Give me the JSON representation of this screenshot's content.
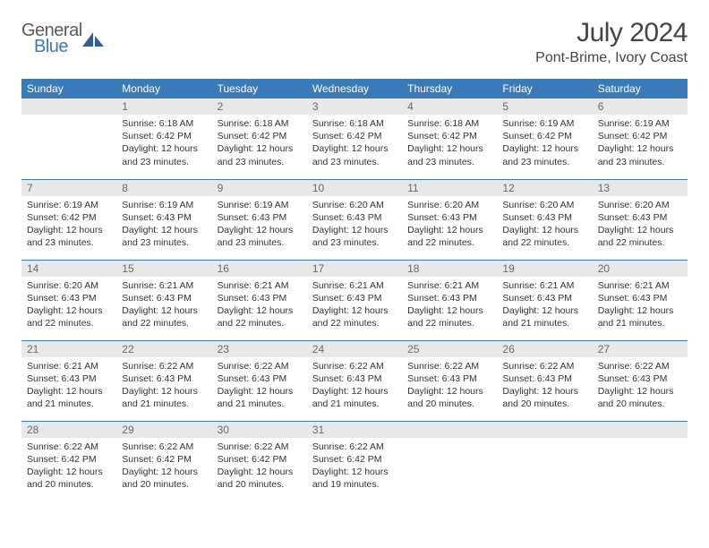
{
  "logo": {
    "general": "General",
    "blue": "Blue"
  },
  "title": {
    "month": "July 2024",
    "location": "Pont-Brime, Ivory Coast"
  },
  "colors": {
    "header_bg": "#3a7ab8",
    "header_fg": "#ffffff",
    "daynum_bg": "#e8e8e8",
    "daynum_fg": "#6a6a6a",
    "rule": "#3a7ab8",
    "text": "#333333",
    "logo_gray": "#5a5a5a",
    "logo_blue": "#3a7ab8"
  },
  "weekdays": [
    "Sunday",
    "Monday",
    "Tuesday",
    "Wednesday",
    "Thursday",
    "Friday",
    "Saturday"
  ],
  "startOffset": 1,
  "daysInMonth": 31,
  "days": {
    "1": {
      "sunrise": "Sunrise: 6:18 AM",
      "sunset": "Sunset: 6:42 PM",
      "daylight": "Daylight: 12 hours and 23 minutes."
    },
    "2": {
      "sunrise": "Sunrise: 6:18 AM",
      "sunset": "Sunset: 6:42 PM",
      "daylight": "Daylight: 12 hours and 23 minutes."
    },
    "3": {
      "sunrise": "Sunrise: 6:18 AM",
      "sunset": "Sunset: 6:42 PM",
      "daylight": "Daylight: 12 hours and 23 minutes."
    },
    "4": {
      "sunrise": "Sunrise: 6:18 AM",
      "sunset": "Sunset: 6:42 PM",
      "daylight": "Daylight: 12 hours and 23 minutes."
    },
    "5": {
      "sunrise": "Sunrise: 6:19 AM",
      "sunset": "Sunset: 6:42 PM",
      "daylight": "Daylight: 12 hours and 23 minutes."
    },
    "6": {
      "sunrise": "Sunrise: 6:19 AM",
      "sunset": "Sunset: 6:42 PM",
      "daylight": "Daylight: 12 hours and 23 minutes."
    },
    "7": {
      "sunrise": "Sunrise: 6:19 AM",
      "sunset": "Sunset: 6:42 PM",
      "daylight": "Daylight: 12 hours and 23 minutes."
    },
    "8": {
      "sunrise": "Sunrise: 6:19 AM",
      "sunset": "Sunset: 6:43 PM",
      "daylight": "Daylight: 12 hours and 23 minutes."
    },
    "9": {
      "sunrise": "Sunrise: 6:19 AM",
      "sunset": "Sunset: 6:43 PM",
      "daylight": "Daylight: 12 hours and 23 minutes."
    },
    "10": {
      "sunrise": "Sunrise: 6:20 AM",
      "sunset": "Sunset: 6:43 PM",
      "daylight": "Daylight: 12 hours and 23 minutes."
    },
    "11": {
      "sunrise": "Sunrise: 6:20 AM",
      "sunset": "Sunset: 6:43 PM",
      "daylight": "Daylight: 12 hours and 22 minutes."
    },
    "12": {
      "sunrise": "Sunrise: 6:20 AM",
      "sunset": "Sunset: 6:43 PM",
      "daylight": "Daylight: 12 hours and 22 minutes."
    },
    "13": {
      "sunrise": "Sunrise: 6:20 AM",
      "sunset": "Sunset: 6:43 PM",
      "daylight": "Daylight: 12 hours and 22 minutes."
    },
    "14": {
      "sunrise": "Sunrise: 6:20 AM",
      "sunset": "Sunset: 6:43 PM",
      "daylight": "Daylight: 12 hours and 22 minutes."
    },
    "15": {
      "sunrise": "Sunrise: 6:21 AM",
      "sunset": "Sunset: 6:43 PM",
      "daylight": "Daylight: 12 hours and 22 minutes."
    },
    "16": {
      "sunrise": "Sunrise: 6:21 AM",
      "sunset": "Sunset: 6:43 PM",
      "daylight": "Daylight: 12 hours and 22 minutes."
    },
    "17": {
      "sunrise": "Sunrise: 6:21 AM",
      "sunset": "Sunset: 6:43 PM",
      "daylight": "Daylight: 12 hours and 22 minutes."
    },
    "18": {
      "sunrise": "Sunrise: 6:21 AM",
      "sunset": "Sunset: 6:43 PM",
      "daylight": "Daylight: 12 hours and 22 minutes."
    },
    "19": {
      "sunrise": "Sunrise: 6:21 AM",
      "sunset": "Sunset: 6:43 PM",
      "daylight": "Daylight: 12 hours and 21 minutes."
    },
    "20": {
      "sunrise": "Sunrise: 6:21 AM",
      "sunset": "Sunset: 6:43 PM",
      "daylight": "Daylight: 12 hours and 21 minutes."
    },
    "21": {
      "sunrise": "Sunrise: 6:21 AM",
      "sunset": "Sunset: 6:43 PM",
      "daylight": "Daylight: 12 hours and 21 minutes."
    },
    "22": {
      "sunrise": "Sunrise: 6:22 AM",
      "sunset": "Sunset: 6:43 PM",
      "daylight": "Daylight: 12 hours and 21 minutes."
    },
    "23": {
      "sunrise": "Sunrise: 6:22 AM",
      "sunset": "Sunset: 6:43 PM",
      "daylight": "Daylight: 12 hours and 21 minutes."
    },
    "24": {
      "sunrise": "Sunrise: 6:22 AM",
      "sunset": "Sunset: 6:43 PM",
      "daylight": "Daylight: 12 hours and 21 minutes."
    },
    "25": {
      "sunrise": "Sunrise: 6:22 AM",
      "sunset": "Sunset: 6:43 PM",
      "daylight": "Daylight: 12 hours and 20 minutes."
    },
    "26": {
      "sunrise": "Sunrise: 6:22 AM",
      "sunset": "Sunset: 6:43 PM",
      "daylight": "Daylight: 12 hours and 20 minutes."
    },
    "27": {
      "sunrise": "Sunrise: 6:22 AM",
      "sunset": "Sunset: 6:43 PM",
      "daylight": "Daylight: 12 hours and 20 minutes."
    },
    "28": {
      "sunrise": "Sunrise: 6:22 AM",
      "sunset": "Sunset: 6:42 PM",
      "daylight": "Daylight: 12 hours and 20 minutes."
    },
    "29": {
      "sunrise": "Sunrise: 6:22 AM",
      "sunset": "Sunset: 6:42 PM",
      "daylight": "Daylight: 12 hours and 20 minutes."
    },
    "30": {
      "sunrise": "Sunrise: 6:22 AM",
      "sunset": "Sunset: 6:42 PM",
      "daylight": "Daylight: 12 hours and 20 minutes."
    },
    "31": {
      "sunrise": "Sunrise: 6:22 AM",
      "sunset": "Sunset: 6:42 PM",
      "daylight": "Daylight: 12 hours and 19 minutes."
    }
  }
}
